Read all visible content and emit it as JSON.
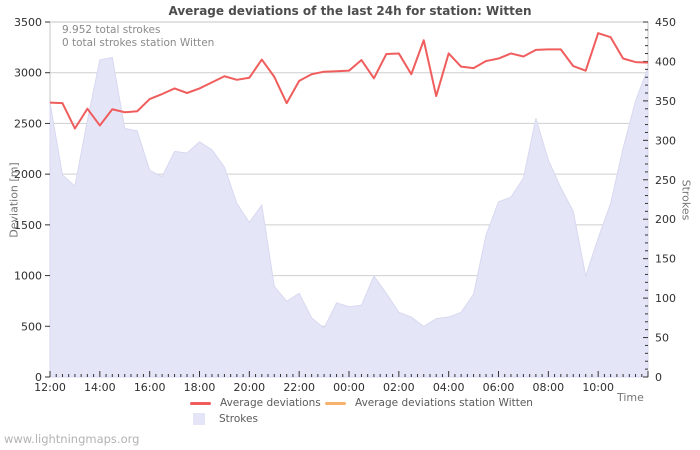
{
  "page": {
    "watermark": "www.lightningmaps.org"
  },
  "chart_data": {
    "type": "line",
    "title": "Average deviations of the last 24h for station: Witten",
    "annotations": [
      "9.952 total strokes",
      "0 total strokes station Witten"
    ],
    "x_axis": {
      "label": "Time",
      "start": "12:00",
      "interval_minutes": 30,
      "tick_labels": [
        "12:00",
        "14:00",
        "16:00",
        "18:00",
        "20:00",
        "22:00",
        "00:00",
        "02:00",
        "04:00",
        "06:00",
        "08:00",
        "10:00"
      ],
      "points_per_label": 4,
      "minor_ticks_per_point": 2
    },
    "left_axis": {
      "label": "Deviation [m]",
      "min": 0,
      "max": 3500,
      "step": 500,
      "tick_labels": [
        "0",
        "500",
        "1000",
        "1500",
        "2000",
        "2500",
        "3000",
        "3500"
      ]
    },
    "right_axis": {
      "label": "Strokes",
      "min": 0,
      "max": 450,
      "step": 50,
      "minor_step": 10,
      "tick_labels": [
        "0",
        "50",
        "100",
        "150",
        "200",
        "250",
        "300",
        "350",
        "400",
        "450"
      ]
    },
    "grid": true,
    "legend_position": "bottom",
    "series": [
      {
        "name": "Average deviations",
        "type": "line",
        "axis": "left",
        "color": "#f05d5d",
        "values": [
          2705,
          2700,
          2450,
          2645,
          2480,
          2640,
          2610,
          2620,
          2740,
          2790,
          2845,
          2800,
          2845,
          2905,
          2965,
          2930,
          2950,
          3130,
          2960,
          2700,
          2920,
          2985,
          3010,
          3015,
          3020,
          3125,
          2945,
          3185,
          3190,
          2985,
          3320,
          2770,
          3190,
          3060,
          3045,
          3115,
          3140,
          3190,
          3160,
          3225,
          3230,
          3230,
          3065,
          3020,
          3390,
          3350,
          3140,
          3105,
          3100
        ]
      },
      {
        "name": "Average deviations station Witten",
        "type": "line",
        "axis": "left",
        "color": "#f9b26e",
        "values": []
      },
      {
        "name": "Strokes",
        "type": "area",
        "axis": "right",
        "color": "#e5e5f8",
        "edge_color": "#d8d8f0",
        "values": [
          348,
          256,
          242,
          325,
          402,
          405,
          315,
          312,
          262,
          254,
          286,
          284,
          298,
          288,
          266,
          220,
          196,
          218,
          115,
          96,
          106,
          75,
          62,
          94,
          89,
          91,
          128,
          106,
          82,
          76,
          64,
          74,
          76,
          82,
          105,
          180,
          222,
          228,
          252,
          328,
          275,
          240,
          210,
          128,
          176,
          220,
          290,
          350,
          392
        ]
      }
    ],
    "colors": {
      "grid": "#cfcfcf",
      "frame": "#c4c4c4",
      "tick": "#333333",
      "tick_label": "#2f2f2f"
    }
  }
}
